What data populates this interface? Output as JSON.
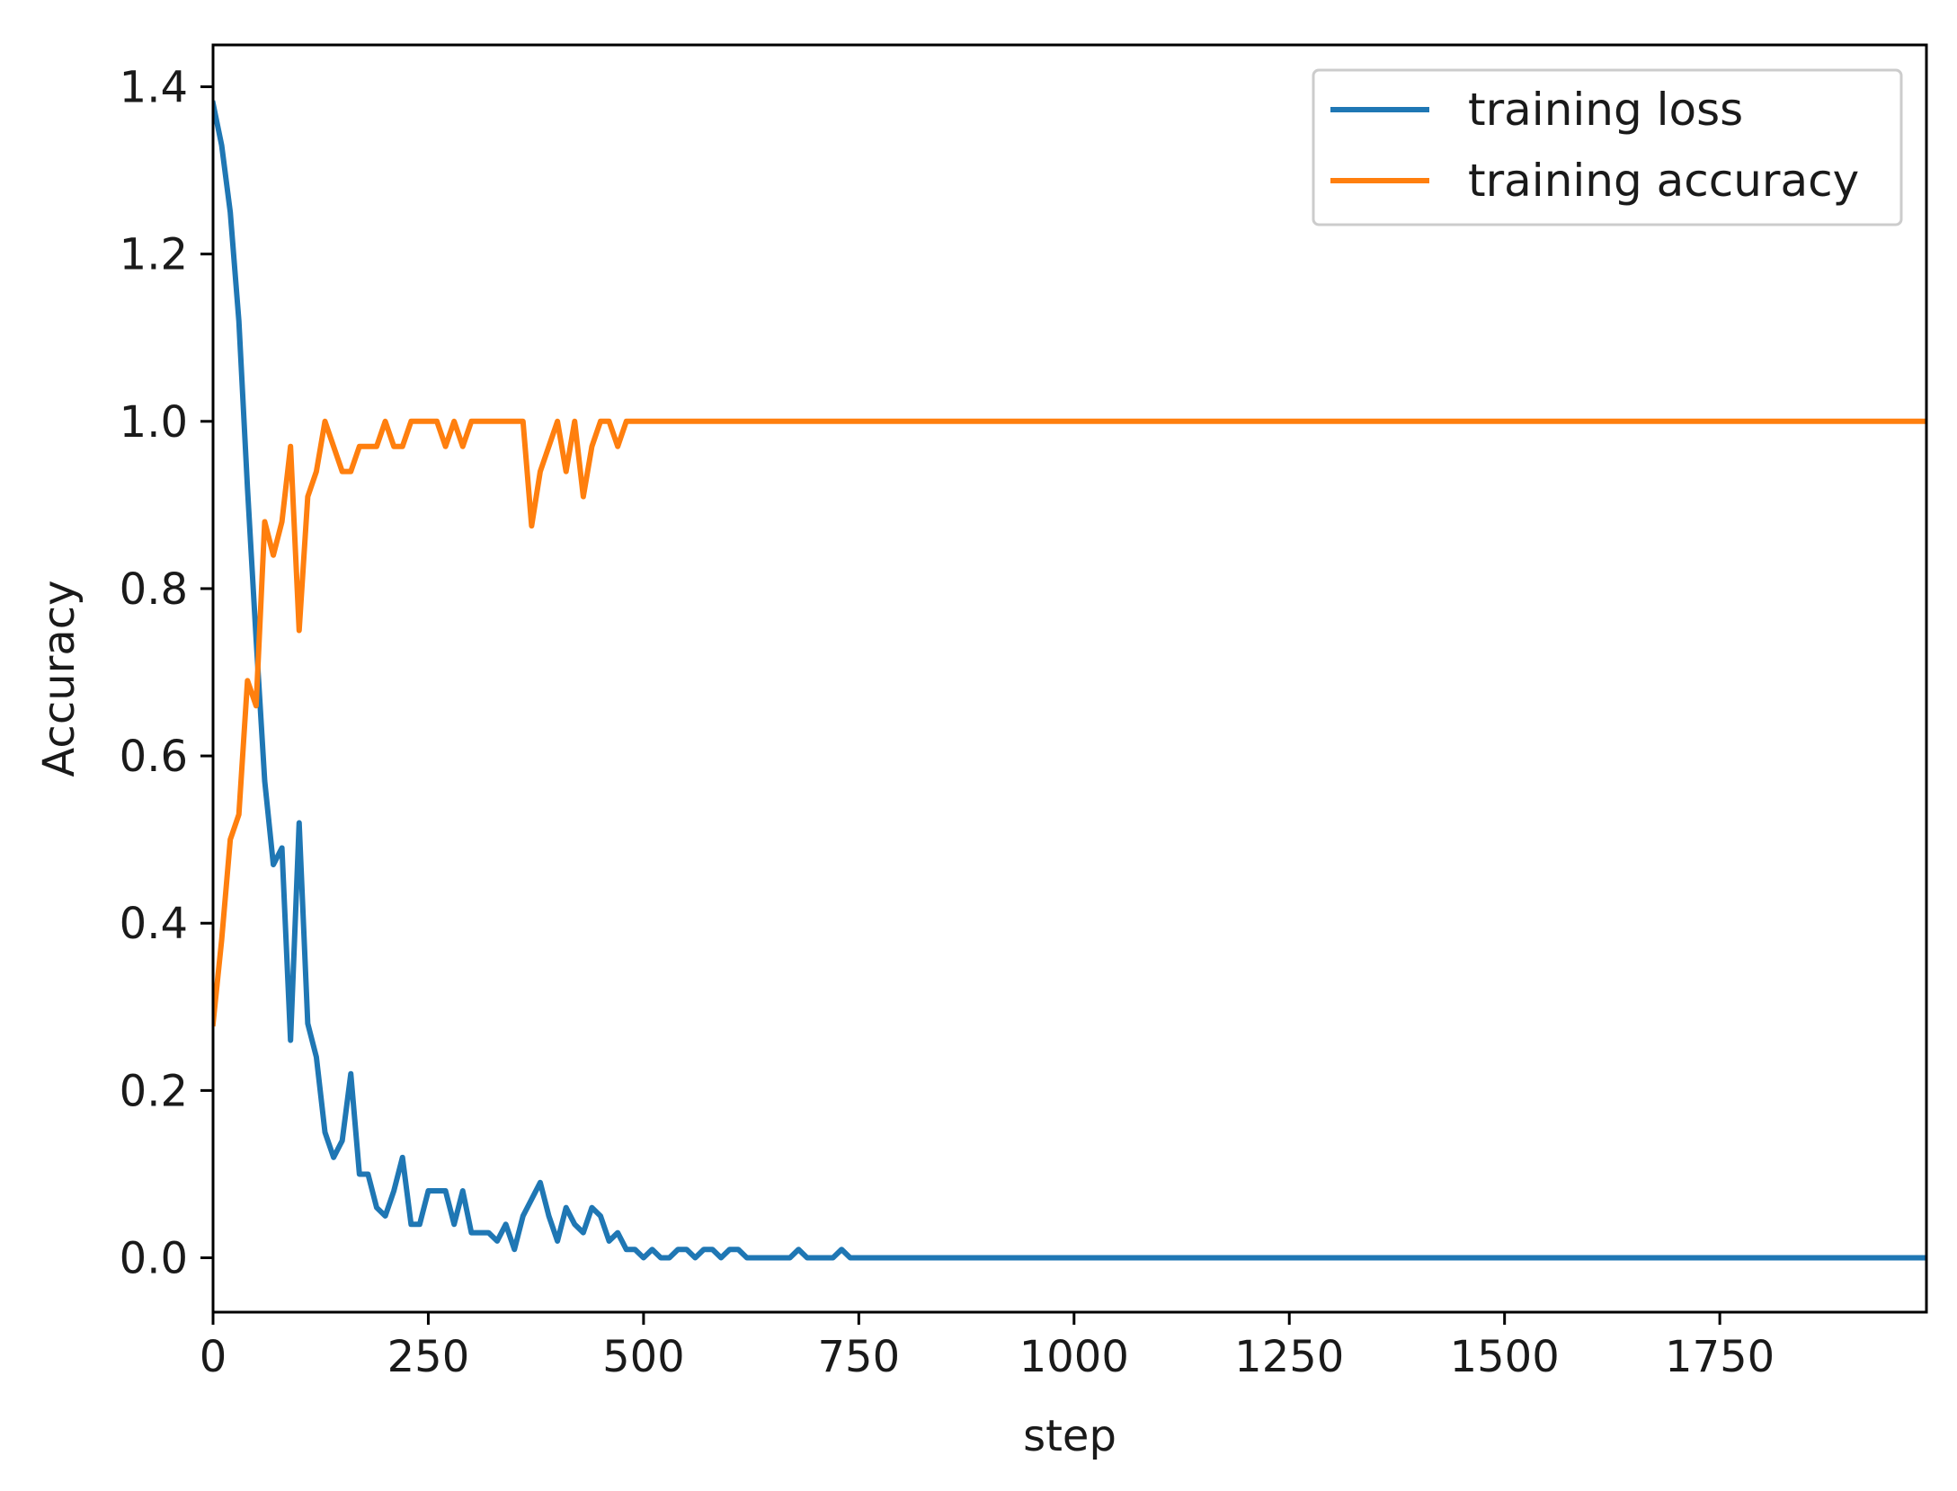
{
  "chart_data": {
    "type": "line",
    "title": "",
    "xlabel": "step",
    "ylabel": "Accuracy",
    "xlim": [
      0,
      1990
    ],
    "ylim": [
      -0.065,
      1.45
    ],
    "xticks": [
      0,
      250,
      500,
      750,
      1000,
      1250,
      1500,
      1750
    ],
    "xtick_labels": [
      "0",
      "250",
      "500",
      "750",
      "1000",
      "1250",
      "1500",
      "1750"
    ],
    "yticks": [
      0.0,
      0.2,
      0.4,
      0.6,
      0.8,
      1.0,
      1.2,
      1.4
    ],
    "ytick_labels": [
      "0.0",
      "0.2",
      "0.4",
      "0.6",
      "0.8",
      "1.0",
      "1.2",
      "1.4"
    ],
    "grid": false,
    "legend_position": "top-right",
    "series": [
      {
        "name": "training loss",
        "color": "#1f77b4",
        "x": [
          0,
          10,
          20,
          30,
          40,
          50,
          60,
          70,
          80,
          90,
          100,
          110,
          120,
          130,
          140,
          150,
          160,
          170,
          180,
          190,
          200,
          210,
          220,
          230,
          240,
          250,
          260,
          270,
          280,
          290,
          300,
          310,
          320,
          330,
          340,
          350,
          360,
          370,
          380,
          390,
          400,
          410,
          420,
          430,
          440,
          450,
          460,
          470,
          480,
          490,
          500,
          510,
          520,
          530,
          540,
          550,
          560,
          570,
          580,
          590,
          600,
          610,
          620,
          630,
          640,
          650,
          660,
          670,
          680,
          690,
          700,
          710,
          720,
          730,
          740,
          750,
          1000,
          1250,
          1500,
          1750,
          1990
        ],
        "y": [
          1.38,
          1.33,
          1.25,
          1.12,
          0.92,
          0.74,
          0.57,
          0.47,
          0.49,
          0.26,
          0.52,
          0.28,
          0.24,
          0.15,
          0.12,
          0.14,
          0.22,
          0.1,
          0.1,
          0.06,
          0.05,
          0.08,
          0.12,
          0.04,
          0.04,
          0.08,
          0.08,
          0.08,
          0.04,
          0.08,
          0.03,
          0.03,
          0.03,
          0.02,
          0.04,
          0.01,
          0.05,
          0.07,
          0.09,
          0.05,
          0.02,
          0.06,
          0.04,
          0.03,
          0.06,
          0.05,
          0.02,
          0.03,
          0.01,
          0.01,
          0.0,
          0.01,
          0.0,
          0.0,
          0.01,
          0.01,
          0.0,
          0.01,
          0.01,
          0.0,
          0.01,
          0.01,
          0.0,
          0.0,
          0.0,
          0.0,
          0.0,
          0.0,
          0.01,
          0.0,
          0.0,
          0.0,
          0.0,
          0.01,
          0.0,
          0.0,
          0.0,
          0.0,
          0.0,
          0.0,
          0.0
        ]
      },
      {
        "name": "training accuracy",
        "color": "#ff7f0e",
        "x": [
          0,
          10,
          20,
          30,
          40,
          50,
          60,
          70,
          80,
          90,
          100,
          110,
          120,
          130,
          140,
          150,
          160,
          170,
          180,
          190,
          200,
          210,
          220,
          230,
          240,
          250,
          260,
          270,
          280,
          290,
          300,
          310,
          320,
          330,
          340,
          350,
          360,
          370,
          380,
          390,
          400,
          410,
          420,
          430,
          440,
          450,
          460,
          470,
          480,
          490,
          500,
          750,
          1000,
          1250,
          1500,
          1750,
          1990
        ],
        "y": [
          0.28,
          0.38,
          0.5,
          0.53,
          0.69,
          0.66,
          0.88,
          0.84,
          0.88,
          0.97,
          0.75,
          0.91,
          0.94,
          1.0,
          0.97,
          0.94,
          0.94,
          0.97,
          0.97,
          0.97,
          1.0,
          0.97,
          0.97,
          1.0,
          1.0,
          1.0,
          1.0,
          0.97,
          1.0,
          0.97,
          1.0,
          1.0,
          1.0,
          1.0,
          1.0,
          1.0,
          1.0,
          0.875,
          0.94,
          0.97,
          1.0,
          0.94,
          1.0,
          0.91,
          0.97,
          1.0,
          1.0,
          0.97,
          1.0,
          1.0,
          1.0,
          1.0,
          1.0,
          1.0,
          1.0,
          1.0,
          1.0
        ]
      }
    ]
  }
}
